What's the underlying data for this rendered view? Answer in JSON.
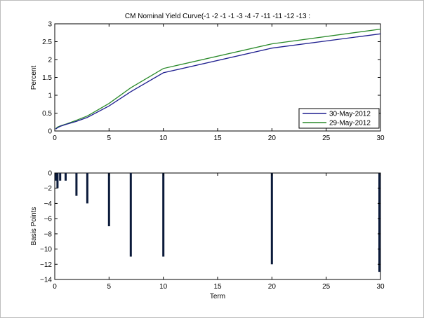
{
  "chart_data": [
    {
      "type": "line",
      "title": "CM Nominal Yield Curve(-1 -2 -1 -1 -3 -4 -7 -11 -11 -12 -13 :",
      "xlabel": "",
      "ylabel": "Percent",
      "xlim": [
        0,
        30
      ],
      "ylim": [
        0,
        3
      ],
      "xticks": [
        0,
        5,
        10,
        15,
        20,
        25,
        30
      ],
      "yticks": [
        0,
        0.5,
        1,
        1.5,
        2,
        2.5,
        3
      ],
      "grid": false,
      "legend_position": "bottom-right",
      "series": [
        {
          "name": "30-May-2012",
          "color": "#1f1f8f",
          "x": [
            0.083,
            0.25,
            0.5,
            1,
            2,
            3,
            5,
            7,
            10,
            20,
            30
          ],
          "y": [
            0.05,
            0.09,
            0.13,
            0.18,
            0.27,
            0.38,
            0.7,
            1.1,
            1.63,
            2.32,
            2.72
          ]
        },
        {
          "name": "29-May-2012",
          "color": "#2a8a2a",
          "x": [
            0.083,
            0.25,
            0.5,
            1,
            2,
            3,
            5,
            7,
            10,
            20,
            30
          ],
          "y": [
            0.06,
            0.11,
            0.14,
            0.19,
            0.3,
            0.42,
            0.77,
            1.21,
            1.75,
            2.44,
            2.85
          ]
        }
      ]
    },
    {
      "type": "bar",
      "title": "",
      "xlabel": "Term",
      "ylabel": "Basis Points",
      "xlim": [
        0,
        30
      ],
      "ylim": [
        -14,
        0
      ],
      "xticks": [
        0,
        5,
        10,
        15,
        20,
        25,
        30
      ],
      "yticks": [
        0,
        -2,
        -4,
        -6,
        -8,
        -10,
        -12,
        -14
      ],
      "grid": false,
      "bar_color": "#0b1a3a",
      "x": [
        0.083,
        0.25,
        0.5,
        1,
        2,
        3,
        5,
        7,
        10,
        20,
        30
      ],
      "values": [
        -1,
        -2,
        -1,
        -1,
        -3,
        -4,
        -7,
        -11,
        -11,
        -12,
        -13
      ]
    }
  ]
}
